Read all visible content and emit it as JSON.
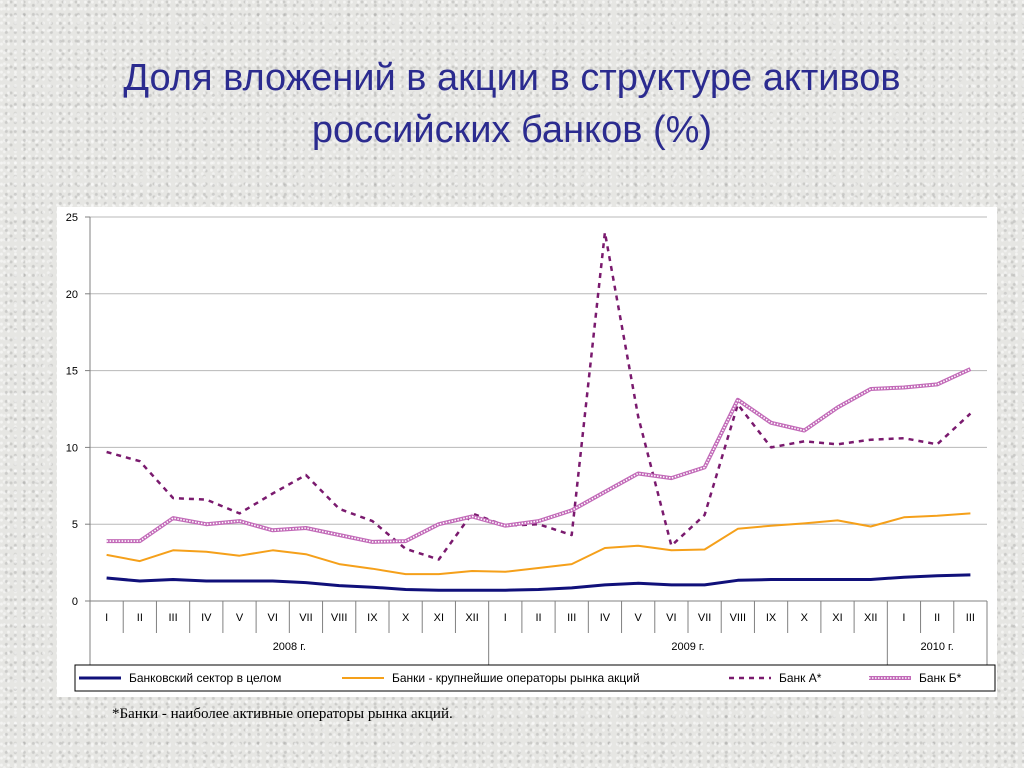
{
  "title": {
    "line1": "Доля вложений в акции в структуре активов",
    "line2": "российских банков (%)"
  },
  "footnote": "*Банки - наиболее активные операторы рынка акций.",
  "chart_data": {
    "type": "line",
    "categories": [
      "I",
      "II",
      "III",
      "IV",
      "V",
      "VI",
      "VII",
      "VIII",
      "IX",
      "X",
      "XI",
      "XII",
      "I",
      "II",
      "III",
      "IV",
      "V",
      "VI",
      "VII",
      "VIII",
      "IX",
      "X",
      "XI",
      "XII",
      "I",
      "II",
      "III"
    ],
    "year_groups": [
      {
        "label": "2008 г.",
        "count": 12
      },
      {
        "label": "2009 г.",
        "count": 12
      },
      {
        "label": "2010 г.",
        "count": 3
      }
    ],
    "ylim": [
      0,
      25
    ],
    "yticks": [
      0,
      5,
      10,
      15,
      20,
      25
    ],
    "grid": true,
    "legend_position": "bottom",
    "series": [
      {
        "name": "Банковский сектор в целом",
        "color": "#10107a",
        "style": "solid-thick",
        "values": [
          1.5,
          1.3,
          1.4,
          1.3,
          1.3,
          1.3,
          1.2,
          1.0,
          0.9,
          0.75,
          0.7,
          0.7,
          0.7,
          0.75,
          0.85,
          1.05,
          1.15,
          1.05,
          1.05,
          1.35,
          1.4,
          1.4,
          1.4,
          1.4,
          1.55,
          1.65,
          1.7
        ]
      },
      {
        "name": "Банки - крупнейшие операторы рынка акций",
        "color": "#f5a01a",
        "style": "solid",
        "values": [
          3.0,
          2.6,
          3.3,
          3.2,
          2.95,
          3.3,
          3.05,
          2.4,
          2.1,
          1.75,
          1.75,
          1.95,
          1.9,
          2.15,
          2.4,
          3.45,
          3.6,
          3.3,
          3.35,
          4.7,
          4.9,
          5.05,
          5.25,
          4.85,
          5.45,
          5.55,
          5.7
        ]
      },
      {
        "name": "Банк А*",
        "color": "#7a1a6e",
        "style": "dashed",
        "values": [
          9.7,
          9.1,
          6.7,
          6.6,
          5.7,
          7.0,
          8.2,
          6.0,
          5.2,
          3.4,
          2.7,
          5.7,
          4.9,
          5.0,
          4.3,
          24.0,
          12.0,
          3.6,
          5.6,
          12.8,
          10.0,
          10.4,
          10.2,
          10.5,
          10.6,
          10.2,
          12.2
        ]
      },
      {
        "name": "Банк Б*",
        "color": "#c26ab8",
        "style": "dotted-double",
        "values": [
          3.9,
          3.9,
          5.4,
          5.0,
          5.2,
          4.6,
          4.75,
          4.3,
          3.85,
          3.9,
          5.0,
          5.5,
          4.9,
          5.2,
          5.9,
          7.1,
          8.3,
          8.0,
          8.7,
          13.1,
          11.6,
          11.1,
          12.6,
          13.8,
          13.9,
          14.1,
          15.1
        ]
      }
    ]
  }
}
